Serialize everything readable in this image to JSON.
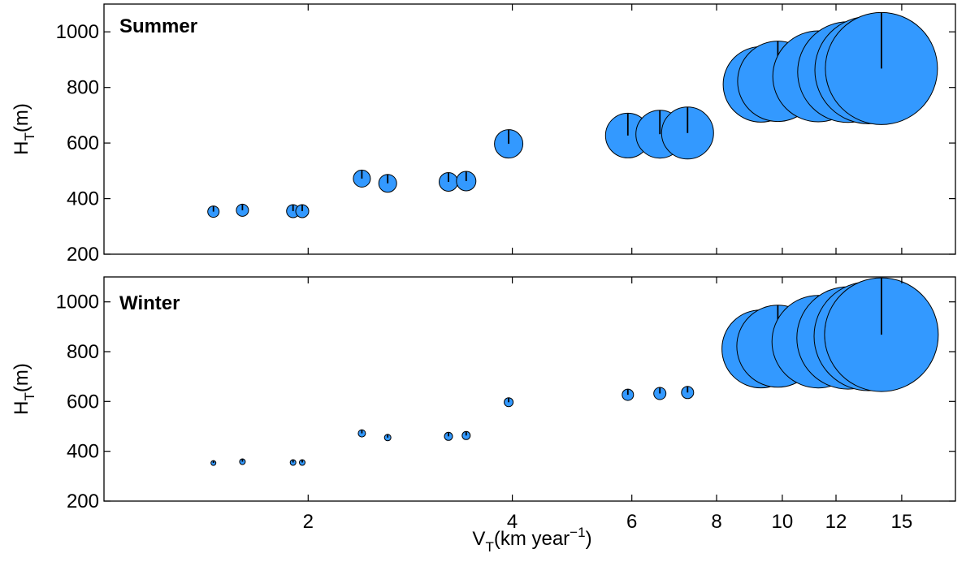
{
  "chart_data": [
    {
      "type": "scatter",
      "title": "Summer",
      "ylabel": {
        "main": "H",
        "sub": "T",
        "rest": "(m)"
      },
      "ylim": [
        200,
        1100
      ],
      "yticks": [
        200,
        400,
        600,
        800,
        1000
      ],
      "x_scale": "log",
      "xlim": [
        1.0,
        18.0
      ],
      "marker_color": "#3399ff",
      "points": [
        {
          "x": 1.45,
          "y": 353,
          "size": 14
        },
        {
          "x": 1.6,
          "y": 358,
          "size": 15
        },
        {
          "x": 1.9,
          "y": 355,
          "size": 16
        },
        {
          "x": 1.96,
          "y": 355,
          "size": 16
        },
        {
          "x": 2.4,
          "y": 472,
          "size": 21
        },
        {
          "x": 2.62,
          "y": 455,
          "size": 22
        },
        {
          "x": 3.22,
          "y": 460,
          "size": 23
        },
        {
          "x": 3.42,
          "y": 463,
          "size": 24
        },
        {
          "x": 3.95,
          "y": 597,
          "size": 35
        },
        {
          "x": 5.92,
          "y": 627,
          "size": 55
        },
        {
          "x": 6.6,
          "y": 632,
          "size": 59
        },
        {
          "x": 7.25,
          "y": 636,
          "size": 64
        },
        {
          "x": 9.3,
          "y": 811,
          "size": 93
        },
        {
          "x": 9.85,
          "y": 822,
          "size": 99
        },
        {
          "x": 11.3,
          "y": 840,
          "size": 112
        },
        {
          "x": 12.5,
          "y": 855,
          "size": 124
        },
        {
          "x": 13.4,
          "y": 862,
          "size": 132
        },
        {
          "x": 14.0,
          "y": 868,
          "size": 138
        }
      ]
    },
    {
      "type": "scatter",
      "title": "Winter",
      "ylabel": {
        "main": "H",
        "sub": "T",
        "rest": "(m)"
      },
      "ylim": [
        200,
        1100
      ],
      "yticks": [
        200,
        400,
        600,
        800,
        1000
      ],
      "x_scale": "log",
      "xlim": [
        1.0,
        18.0
      ],
      "xticks": [
        2,
        4,
        6,
        8,
        10,
        12,
        15
      ],
      "xlabel": {
        "main": "V",
        "sub": "T",
        "rest": "(km year",
        "sup": "−1",
        "close": ")"
      },
      "marker_color": "#3399ff",
      "points": [
        {
          "x": 1.45,
          "y": 353,
          "size": 6
        },
        {
          "x": 1.6,
          "y": 358,
          "size": 7
        },
        {
          "x": 1.9,
          "y": 355,
          "size": 7
        },
        {
          "x": 1.96,
          "y": 355,
          "size": 7
        },
        {
          "x": 2.4,
          "y": 472,
          "size": 9
        },
        {
          "x": 2.62,
          "y": 455,
          "size": 8
        },
        {
          "x": 3.22,
          "y": 460,
          "size": 10
        },
        {
          "x": 3.42,
          "y": 463,
          "size": 10
        },
        {
          "x": 3.95,
          "y": 597,
          "size": 11
        },
        {
          "x": 5.92,
          "y": 627,
          "size": 14
        },
        {
          "x": 6.6,
          "y": 632,
          "size": 15
        },
        {
          "x": 7.25,
          "y": 636,
          "size": 15
        },
        {
          "x": 9.3,
          "y": 811,
          "size": 96
        },
        {
          "x": 9.85,
          "y": 822,
          "size": 101
        },
        {
          "x": 11.3,
          "y": 840,
          "size": 114
        },
        {
          "x": 12.5,
          "y": 855,
          "size": 126
        },
        {
          "x": 13.4,
          "y": 862,
          "size": 134
        },
        {
          "x": 14.0,
          "y": 868,
          "size": 140
        }
      ]
    }
  ]
}
